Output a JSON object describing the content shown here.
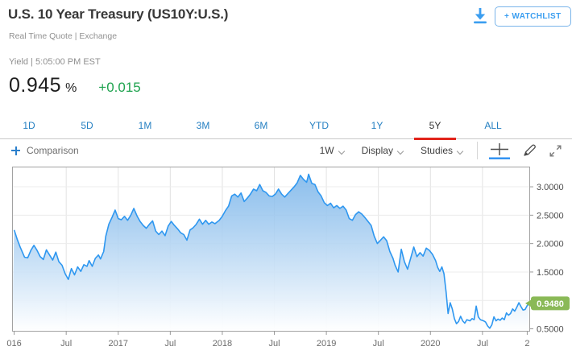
{
  "header": {
    "title": "U.S. 10 Year Treasury (US10Y:U.S.)",
    "subtitle": "Real Time Quote | Exchange",
    "watchlist_label": "+ WATCHLIST",
    "download_icon": "download-arrow-icon",
    "accent_blue": "#3b9ef0"
  },
  "quote": {
    "label_line": "Yield | 5:05:00 PM EST",
    "value": "0.945",
    "unit": "%",
    "change": "+0.015",
    "change_color": "#1fa34f"
  },
  "range_tabs": {
    "active_underline_color": "#e2231a",
    "inactive_color": "#2680c2",
    "items": [
      {
        "label": "1D",
        "active": false
      },
      {
        "label": "5D",
        "active": false
      },
      {
        "label": "1M",
        "active": false
      },
      {
        "label": "3M",
        "active": false
      },
      {
        "label": "6M",
        "active": false
      },
      {
        "label": "YTD",
        "active": false
      },
      {
        "label": "1Y",
        "active": false
      },
      {
        "label": "5Y",
        "active": true
      },
      {
        "label": "ALL",
        "active": false
      }
    ]
  },
  "toolbar": {
    "comparison_label": "Comparison",
    "interval_label": "1W",
    "display_label": "Display",
    "studies_label": "Studies",
    "icons": [
      "crosshair-icon",
      "draw-pencil-icon",
      "expand-icon"
    ],
    "active_tool": "crosshair",
    "active_tool_color": "#2b8ff2"
  },
  "chart_data": {
    "type": "area",
    "series_name": "US10Y yield",
    "interval": "1W",
    "line_color": "#2e97f0",
    "fill_top_color": "#72b0e8",
    "fill_bottom_color": "#ffffff",
    "grid_on": true,
    "xlim": [
      2015.98,
      2020.95
    ],
    "ylim": [
      0.465,
      3.355
    ],
    "yticks": [
      {
        "v": 3.0,
        "label": "3.0000"
      },
      {
        "v": 2.5,
        "label": "2.5000"
      },
      {
        "v": 2.0,
        "label": "2.0000"
      },
      {
        "v": 1.5,
        "label": "1.5000"
      },
      {
        "v": 0.5,
        "label": "0.5000"
      }
    ],
    "grid_y": [
      3.0,
      2.5,
      2.0,
      1.5,
      1.0,
      0.5
    ],
    "grid_x": [
      2016.5,
      2017,
      2017.5,
      2018,
      2018.5,
      2019,
      2019.5,
      2020,
      2020.5
    ],
    "xticks": [
      {
        "t": 2016.0,
        "label": "016"
      },
      {
        "t": 2016.5,
        "label": "Jul"
      },
      {
        "t": 2017.0,
        "label": "2017"
      },
      {
        "t": 2017.5,
        "label": "Jul"
      },
      {
        "t": 2018.0,
        "label": "2018"
      },
      {
        "t": 2018.5,
        "label": "Jul"
      },
      {
        "t": 2019.0,
        "label": "2019"
      },
      {
        "t": 2019.5,
        "label": "Jul"
      },
      {
        "t": 2020.0,
        "label": "2020"
      },
      {
        "t": 2020.5,
        "label": "Jul"
      },
      {
        "t": 2020.93,
        "label": "2"
      }
    ],
    "last_value": 0.948,
    "last_value_label": "0.9480",
    "badge_color": "#8ab957",
    "points": [
      [
        2016.0,
        2.24
      ],
      [
        2016.03,
        2.07
      ],
      [
        2016.06,
        1.93
      ],
      [
        2016.1,
        1.76
      ],
      [
        2016.13,
        1.75
      ],
      [
        2016.16,
        1.88
      ],
      [
        2016.19,
        1.97
      ],
      [
        2016.22,
        1.88
      ],
      [
        2016.25,
        1.77
      ],
      [
        2016.28,
        1.72
      ],
      [
        2016.31,
        1.89
      ],
      [
        2016.34,
        1.8
      ],
      [
        2016.37,
        1.71
      ],
      [
        2016.4,
        1.85
      ],
      [
        2016.43,
        1.68
      ],
      [
        2016.46,
        1.62
      ],
      [
        2016.49,
        1.47
      ],
      [
        2016.52,
        1.37
      ],
      [
        2016.55,
        1.56
      ],
      [
        2016.58,
        1.45
      ],
      [
        2016.61,
        1.59
      ],
      [
        2016.64,
        1.51
      ],
      [
        2016.67,
        1.63
      ],
      [
        2016.7,
        1.6
      ],
      [
        2016.72,
        1.7
      ],
      [
        2016.75,
        1.6
      ],
      [
        2016.78,
        1.74
      ],
      [
        2016.81,
        1.8
      ],
      [
        2016.83,
        1.73
      ],
      [
        2016.86,
        1.86
      ],
      [
        2016.88,
        2.13
      ],
      [
        2016.91,
        2.34
      ],
      [
        2016.94,
        2.46
      ],
      [
        2016.97,
        2.59
      ],
      [
        2017.0,
        2.44
      ],
      [
        2017.03,
        2.42
      ],
      [
        2017.06,
        2.48
      ],
      [
        2017.09,
        2.41
      ],
      [
        2017.12,
        2.5
      ],
      [
        2017.15,
        2.62
      ],
      [
        2017.18,
        2.49
      ],
      [
        2017.21,
        2.39
      ],
      [
        2017.24,
        2.32
      ],
      [
        2017.27,
        2.27
      ],
      [
        2017.3,
        2.34
      ],
      [
        2017.33,
        2.4
      ],
      [
        2017.36,
        2.22
      ],
      [
        2017.39,
        2.16
      ],
      [
        2017.42,
        2.22
      ],
      [
        2017.45,
        2.14
      ],
      [
        2017.48,
        2.31
      ],
      [
        2017.51,
        2.39
      ],
      [
        2017.54,
        2.32
      ],
      [
        2017.57,
        2.26
      ],
      [
        2017.6,
        2.19
      ],
      [
        2017.63,
        2.16
      ],
      [
        2017.66,
        2.06
      ],
      [
        2017.69,
        2.24
      ],
      [
        2017.72,
        2.28
      ],
      [
        2017.75,
        2.34
      ],
      [
        2017.78,
        2.43
      ],
      [
        2017.81,
        2.34
      ],
      [
        2017.84,
        2.41
      ],
      [
        2017.87,
        2.34
      ],
      [
        2017.9,
        2.38
      ],
      [
        2017.93,
        2.35
      ],
      [
        2017.97,
        2.41
      ],
      [
        2018.0,
        2.48
      ],
      [
        2018.03,
        2.58
      ],
      [
        2018.06,
        2.66
      ],
      [
        2018.09,
        2.84
      ],
      [
        2018.12,
        2.87
      ],
      [
        2018.15,
        2.82
      ],
      [
        2018.18,
        2.89
      ],
      [
        2018.21,
        2.74
      ],
      [
        2018.24,
        2.8
      ],
      [
        2018.27,
        2.87
      ],
      [
        2018.3,
        2.96
      ],
      [
        2018.33,
        2.93
      ],
      [
        2018.36,
        3.04
      ],
      [
        2018.39,
        2.93
      ],
      [
        2018.42,
        2.9
      ],
      [
        2018.45,
        2.84
      ],
      [
        2018.48,
        2.83
      ],
      [
        2018.51,
        2.87
      ],
      [
        2018.54,
        2.96
      ],
      [
        2018.57,
        2.87
      ],
      [
        2018.6,
        2.82
      ],
      [
        2018.63,
        2.88
      ],
      [
        2018.66,
        2.94
      ],
      [
        2018.69,
        3.0
      ],
      [
        2018.72,
        3.07
      ],
      [
        2018.75,
        3.2
      ],
      [
        2018.78,
        3.13
      ],
      [
        2018.81,
        3.08
      ],
      [
        2018.83,
        3.22
      ],
      [
        2018.86,
        3.06
      ],
      [
        2018.89,
        3.04
      ],
      [
        2018.92,
        2.91
      ],
      [
        2018.95,
        2.84
      ],
      [
        2018.98,
        2.72
      ],
      [
        2019.01,
        2.67
      ],
      [
        2019.04,
        2.71
      ],
      [
        2019.07,
        2.63
      ],
      [
        2019.1,
        2.67
      ],
      [
        2019.13,
        2.62
      ],
      [
        2019.16,
        2.66
      ],
      [
        2019.19,
        2.59
      ],
      [
        2019.22,
        2.44
      ],
      [
        2019.25,
        2.41
      ],
      [
        2019.28,
        2.51
      ],
      [
        2019.31,
        2.56
      ],
      [
        2019.34,
        2.52
      ],
      [
        2019.37,
        2.46
      ],
      [
        2019.4,
        2.39
      ],
      [
        2019.43,
        2.32
      ],
      [
        2019.46,
        2.13
      ],
      [
        2019.49,
        2.0
      ],
      [
        2019.52,
        2.06
      ],
      [
        2019.55,
        2.12
      ],
      [
        2019.58,
        2.05
      ],
      [
        2019.61,
        1.86
      ],
      [
        2019.64,
        1.74
      ],
      [
        2019.66,
        1.62
      ],
      [
        2019.69,
        1.5
      ],
      [
        2019.72,
        1.9
      ],
      [
        2019.75,
        1.68
      ],
      [
        2019.78,
        1.55
      ],
      [
        2019.81,
        1.74
      ],
      [
        2019.84,
        1.94
      ],
      [
        2019.87,
        1.77
      ],
      [
        2019.9,
        1.84
      ],
      [
        2019.93,
        1.78
      ],
      [
        2019.96,
        1.92
      ],
      [
        2019.99,
        1.88
      ],
      [
        2020.02,
        1.81
      ],
      [
        2020.05,
        1.7
      ],
      [
        2020.07,
        1.58
      ],
      [
        2020.09,
        1.51
      ],
      [
        2020.11,
        1.59
      ],
      [
        2020.13,
        1.47
      ],
      [
        2020.15,
        1.15
      ],
      [
        2020.17,
        0.77
      ],
      [
        2020.19,
        0.96
      ],
      [
        2020.21,
        0.85
      ],
      [
        2020.23,
        0.68
      ],
      [
        2020.25,
        0.59
      ],
      [
        2020.27,
        0.63
      ],
      [
        2020.29,
        0.72
      ],
      [
        2020.31,
        0.64
      ],
      [
        2020.33,
        0.6
      ],
      [
        2020.35,
        0.66
      ],
      [
        2020.38,
        0.64
      ],
      [
        2020.4,
        0.68
      ],
      [
        2020.42,
        0.66
      ],
      [
        2020.44,
        0.9
      ],
      [
        2020.46,
        0.71
      ],
      [
        2020.48,
        0.66
      ],
      [
        2020.51,
        0.64
      ],
      [
        2020.53,
        0.62
      ],
      [
        2020.55,
        0.55
      ],
      [
        2020.57,
        0.51
      ],
      [
        2020.59,
        0.57
      ],
      [
        2020.61,
        0.71
      ],
      [
        2020.63,
        0.64
      ],
      [
        2020.65,
        0.67
      ],
      [
        2020.67,
        0.65
      ],
      [
        2020.69,
        0.69
      ],
      [
        2020.71,
        0.66
      ],
      [
        2020.73,
        0.78
      ],
      [
        2020.75,
        0.74
      ],
      [
        2020.77,
        0.77
      ],
      [
        2020.79,
        0.85
      ],
      [
        2020.81,
        0.81
      ],
      [
        2020.83,
        0.88
      ],
      [
        2020.85,
        0.96
      ],
      [
        2020.87,
        0.89
      ],
      [
        2020.89,
        0.83
      ],
      [
        2020.91,
        0.84
      ],
      [
        2020.93,
        0.91
      ],
      [
        2020.945,
        0.948
      ]
    ]
  }
}
